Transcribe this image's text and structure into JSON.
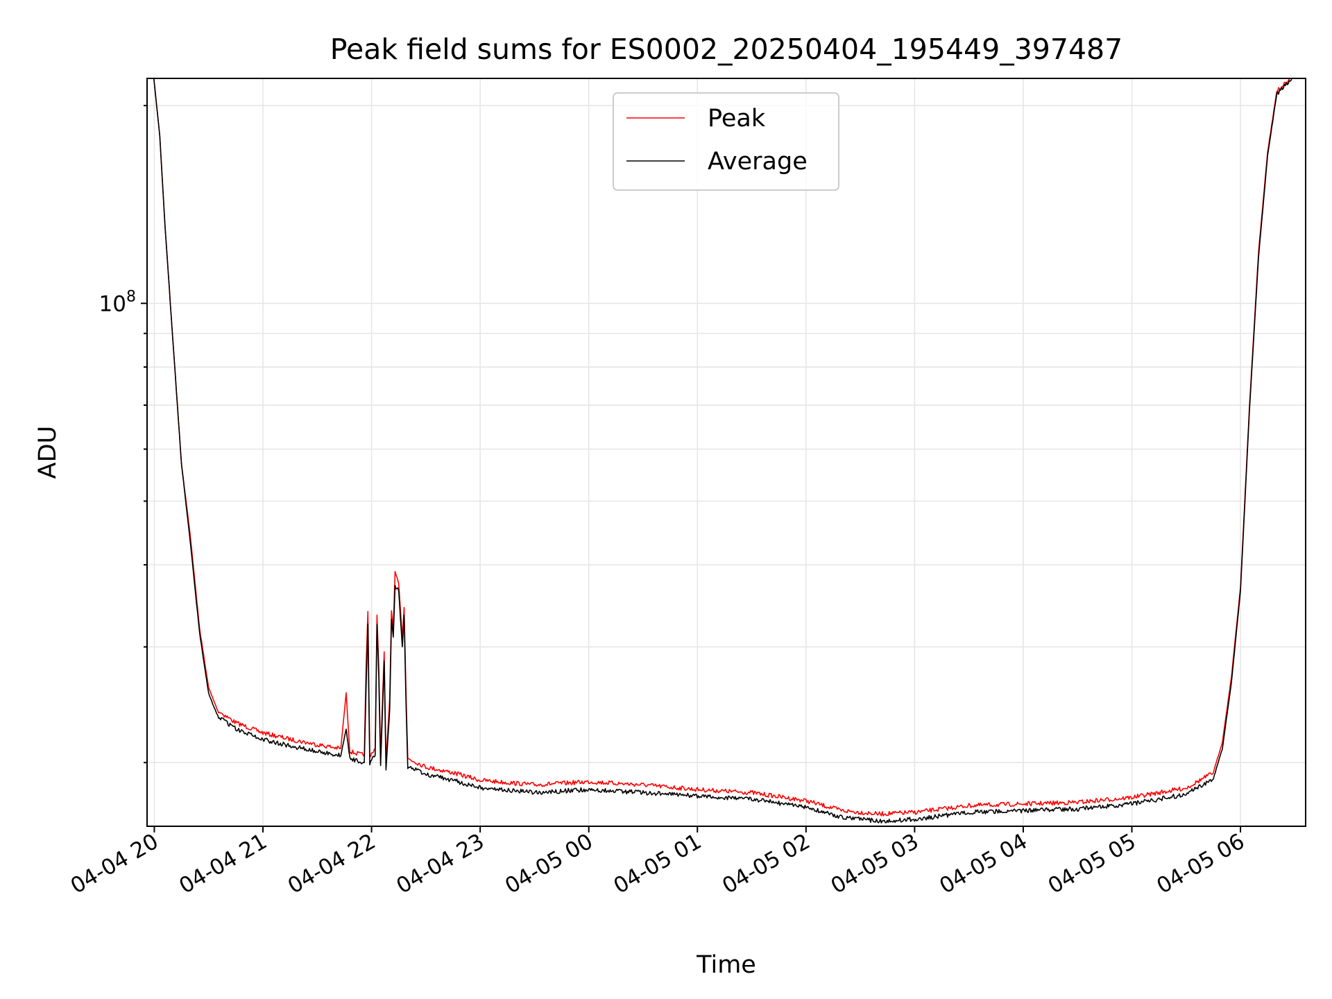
{
  "chart_data": {
    "type": "line",
    "title": "Peak field sums for ES0002_20250404_195449_397487",
    "xlabel": "Time",
    "ylabel": "ADU",
    "y_scale": "log",
    "ylim": [
      16000000,
      220000000
    ],
    "xlim": [
      "2025-04-04 19:56",
      "2025-04-05 06:36"
    ],
    "x_ticks": [
      {
        "value": "2025-04-04 20:00",
        "label": "04-04 20"
      },
      {
        "value": "2025-04-04 21:00",
        "label": "04-04 21"
      },
      {
        "value": "2025-04-04 22:00",
        "label": "04-04 22"
      },
      {
        "value": "2025-04-04 23:00",
        "label": "04-04 23"
      },
      {
        "value": "2025-04-05 00:00",
        "label": "04-05 00"
      },
      {
        "value": "2025-04-05 01:00",
        "label": "04-05 01"
      },
      {
        "value": "2025-04-05 02:00",
        "label": "04-05 02"
      },
      {
        "value": "2025-04-05 03:00",
        "label": "04-05 03"
      },
      {
        "value": "2025-04-05 04:00",
        "label": "04-05 04"
      },
      {
        "value": "2025-04-05 05:00",
        "label": "04-05 05"
      },
      {
        "value": "2025-04-05 06:00",
        "label": "04-05 06"
      }
    ],
    "y_major_ticks": [
      {
        "value": 100000000,
        "base": "10",
        "exp": "8"
      }
    ],
    "y_minor_ticks": [
      20000000,
      30000000,
      40000000,
      50000000,
      60000000,
      70000000,
      80000000,
      90000000,
      200000000
    ],
    "grid": true,
    "legend_position": "upper-center",
    "series": [
      {
        "name": "Peak",
        "color": "#ff0000",
        "points": [
          [
            "2025-04-04 19:59",
            230000000
          ],
          [
            "2025-04-04 20:03",
            180000000
          ],
          [
            "2025-04-04 20:06",
            130000000
          ],
          [
            "2025-04-04 20:10",
            90000000
          ],
          [
            "2025-04-04 20:15",
            57000000
          ],
          [
            "2025-04-04 20:20",
            44000000
          ],
          [
            "2025-04-04 20:25",
            32000000
          ],
          [
            "2025-04-04 20:30",
            26000000
          ],
          [
            "2025-04-04 20:35",
            24000000
          ],
          [
            "2025-04-04 20:45",
            23000000
          ],
          [
            "2025-04-04 21:00",
            22200000
          ],
          [
            "2025-04-04 21:15",
            21700000
          ],
          [
            "2025-04-04 21:30",
            21300000
          ],
          [
            "2025-04-04 21:43",
            21000000
          ],
          [
            "2025-04-04 21:46",
            25500000
          ],
          [
            "2025-04-04 21:48",
            20800000
          ],
          [
            "2025-04-04 21:56",
            20500000
          ],
          [
            "2025-04-04 21:57",
            28000000
          ],
          [
            "2025-04-04 21:58",
            34000000
          ],
          [
            "2025-04-04 21:59",
            20500000
          ],
          [
            "2025-04-04 22:02",
            21000000
          ],
          [
            "2025-04-04 22:03",
            33500000
          ],
          [
            "2025-04-04 22:04",
            28000000
          ],
          [
            "2025-04-04 22:05",
            20400000
          ],
          [
            "2025-04-04 22:07",
            29500000
          ],
          [
            "2025-04-04 22:08",
            20000000
          ],
          [
            "2025-04-04 22:10",
            25000000
          ],
          [
            "2025-04-04 22:11",
            34000000
          ],
          [
            "2025-04-04 22:12",
            32000000
          ],
          [
            "2025-04-04 22:13",
            39000000
          ],
          [
            "2025-04-04 22:15",
            37500000
          ],
          [
            "2025-04-04 22:17",
            31000000
          ],
          [
            "2025-04-04 22:18",
            34500000
          ],
          [
            "2025-04-04 22:19",
            26000000
          ],
          [
            "2025-04-04 22:20",
            20300000
          ],
          [
            "2025-04-04 22:25",
            20000000
          ],
          [
            "2025-04-04 22:30",
            19700000
          ],
          [
            "2025-04-04 22:45",
            19300000
          ],
          [
            "2025-04-04 23:00",
            18800000
          ],
          [
            "2025-04-04 23:30",
            18500000
          ],
          [
            "2025-04-05 00:00",
            18700000
          ],
          [
            "2025-04-05 00:30",
            18500000
          ],
          [
            "2025-04-05 01:00",
            18200000
          ],
          [
            "2025-04-05 01:30",
            18000000
          ],
          [
            "2025-04-05 02:00",
            17500000
          ],
          [
            "2025-04-05 02:20",
            16900000
          ],
          [
            "2025-04-05 02:40",
            16700000
          ],
          [
            "2025-04-05 03:00",
            16800000
          ],
          [
            "2025-04-05 03:30",
            17200000
          ],
          [
            "2025-04-05 04:00",
            17300000
          ],
          [
            "2025-04-05 04:30",
            17400000
          ],
          [
            "2025-04-05 05:00",
            17700000
          ],
          [
            "2025-04-05 05:30",
            18300000
          ],
          [
            "2025-04-05 05:45",
            19300000
          ],
          [
            "2025-04-05 05:50",
            21500000
          ],
          [
            "2025-04-05 05:55",
            27000000
          ],
          [
            "2025-04-05 06:00",
            37000000
          ],
          [
            "2025-04-05 06:05",
            70000000
          ],
          [
            "2025-04-05 06:10",
            120000000
          ],
          [
            "2025-04-05 06:15",
            170000000
          ],
          [
            "2025-04-05 06:20",
            210000000
          ],
          [
            "2025-04-05 06:35",
            230000000
          ]
        ]
      },
      {
        "name": "Average",
        "color": "#000000",
        "points": [
          [
            "2025-04-04 19:59",
            230000000
          ],
          [
            "2025-04-04 20:03",
            180000000
          ],
          [
            "2025-04-04 20:06",
            130000000
          ],
          [
            "2025-04-04 20:10",
            90000000
          ],
          [
            "2025-04-04 20:15",
            57000000
          ],
          [
            "2025-04-04 20:20",
            43000000
          ],
          [
            "2025-04-04 20:25",
            31500000
          ],
          [
            "2025-04-04 20:30",
            25500000
          ],
          [
            "2025-04-04 20:35",
            23500000
          ],
          [
            "2025-04-04 20:45",
            22500000
          ],
          [
            "2025-04-04 21:00",
            21700000
          ],
          [
            "2025-04-04 21:15",
            21200000
          ],
          [
            "2025-04-04 21:30",
            20800000
          ],
          [
            "2025-04-04 21:43",
            20500000
          ],
          [
            "2025-04-04 21:46",
            22500000
          ],
          [
            "2025-04-04 21:48",
            20300000
          ],
          [
            "2025-04-04 21:56",
            20000000
          ],
          [
            "2025-04-04 21:57",
            26000000
          ],
          [
            "2025-04-04 21:58",
            32500000
          ],
          [
            "2025-04-04 21:59",
            20000000
          ],
          [
            "2025-04-04 22:02",
            20500000
          ],
          [
            "2025-04-04 22:03",
            32500000
          ],
          [
            "2025-04-04 22:04",
            27000000
          ],
          [
            "2025-04-04 22:05",
            19800000
          ],
          [
            "2025-04-04 22:07",
            28500000
          ],
          [
            "2025-04-04 22:08",
            19500000
          ],
          [
            "2025-04-04 22:10",
            24000000
          ],
          [
            "2025-04-04 22:11",
            33000000
          ],
          [
            "2025-04-04 22:12",
            31000000
          ],
          [
            "2025-04-04 22:13",
            37000000
          ],
          [
            "2025-04-04 22:15",
            36500000
          ],
          [
            "2025-04-04 22:17",
            30000000
          ],
          [
            "2025-04-04 22:18",
            33500000
          ],
          [
            "2025-04-04 22:19",
            25000000
          ],
          [
            "2025-04-04 22:20",
            19700000
          ],
          [
            "2025-04-04 22:25",
            19500000
          ],
          [
            "2025-04-04 22:30",
            19200000
          ],
          [
            "2025-04-04 22:45",
            18800000
          ],
          [
            "2025-04-04 23:00",
            18300000
          ],
          [
            "2025-04-04 23:30",
            18000000
          ],
          [
            "2025-04-05 00:00",
            18200000
          ],
          [
            "2025-04-05 00:30",
            18000000
          ],
          [
            "2025-04-05 01:00",
            17800000
          ],
          [
            "2025-04-05 01:30",
            17600000
          ],
          [
            "2025-04-05 02:00",
            17100000
          ],
          [
            "2025-04-05 02:20",
            16500000
          ],
          [
            "2025-04-05 02:40",
            16300000
          ],
          [
            "2025-04-05 03:00",
            16400000
          ],
          [
            "2025-04-05 03:30",
            16800000
          ],
          [
            "2025-04-05 04:00",
            16900000
          ],
          [
            "2025-04-05 04:30",
            17000000
          ],
          [
            "2025-04-05 05:00",
            17300000
          ],
          [
            "2025-04-05 05:30",
            17900000
          ],
          [
            "2025-04-05 05:45",
            18900000
          ],
          [
            "2025-04-05 05:50",
            21000000
          ],
          [
            "2025-04-05 05:55",
            26500000
          ],
          [
            "2025-04-05 06:00",
            36500000
          ],
          [
            "2025-04-05 06:05",
            69000000
          ],
          [
            "2025-04-05 06:10",
            118000000
          ],
          [
            "2025-04-05 06:15",
            168000000
          ],
          [
            "2025-04-05 06:20",
            208000000
          ],
          [
            "2025-04-05 06:35",
            230000000
          ]
        ]
      }
    ]
  }
}
